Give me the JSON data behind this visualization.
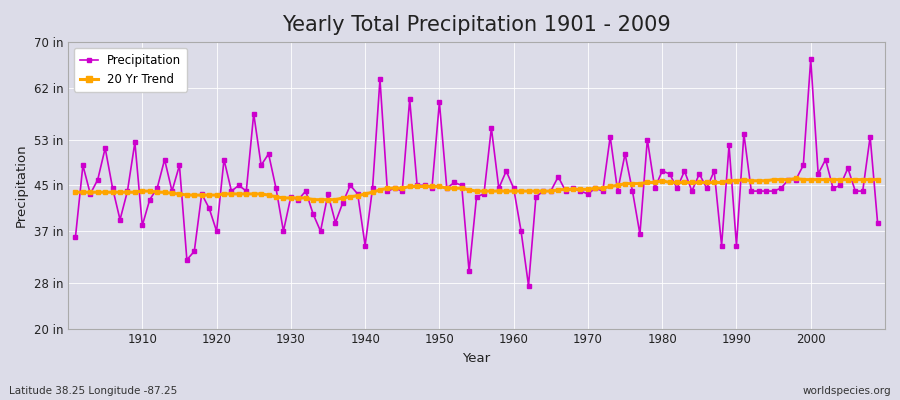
{
  "title": "Yearly Total Precipitation 1901 - 2009",
  "xlabel": "Year",
  "ylabel": "Precipitation",
  "lat_lon_label": "Latitude 38.25 Longitude -87.25",
  "watermark": "worldspecies.org",
  "years": [
    1901,
    1902,
    1903,
    1904,
    1905,
    1906,
    1907,
    1908,
    1909,
    1910,
    1911,
    1912,
    1913,
    1914,
    1915,
    1916,
    1917,
    1918,
    1919,
    1920,
    1921,
    1922,
    1923,
    1924,
    1925,
    1926,
    1927,
    1928,
    1929,
    1930,
    1931,
    1932,
    1933,
    1934,
    1935,
    1936,
    1937,
    1938,
    1939,
    1940,
    1941,
    1942,
    1943,
    1944,
    1945,
    1946,
    1947,
    1948,
    1949,
    1950,
    1951,
    1952,
    1953,
    1954,
    1955,
    1956,
    1957,
    1958,
    1959,
    1960,
    1961,
    1962,
    1963,
    1964,
    1965,
    1966,
    1967,
    1968,
    1969,
    1970,
    1971,
    1972,
    1973,
    1974,
    1975,
    1976,
    1977,
    1978,
    1979,
    1980,
    1981,
    1982,
    1983,
    1984,
    1985,
    1986,
    1987,
    1988,
    1989,
    1990,
    1991,
    1992,
    1993,
    1994,
    1995,
    1996,
    1997,
    1998,
    1999,
    2000,
    2001,
    2002,
    2003,
    2004,
    2005,
    2006,
    2007,
    2008,
    2009
  ],
  "precipitation": [
    36.0,
    48.5,
    43.5,
    46.0,
    51.5,
    44.5,
    39.0,
    44.0,
    52.5,
    38.0,
    42.5,
    44.5,
    49.5,
    44.0,
    48.5,
    32.0,
    33.5,
    43.5,
    41.0,
    37.0,
    49.5,
    44.0,
    45.0,
    44.0,
    57.5,
    48.5,
    50.5,
    44.5,
    37.0,
    43.0,
    42.5,
    44.0,
    40.0,
    37.0,
    43.5,
    38.5,
    42.0,
    45.0,
    43.5,
    34.5,
    44.5,
    63.5,
    44.0,
    44.5,
    44.0,
    60.0,
    45.0,
    45.0,
    44.5,
    59.5,
    44.5,
    45.5,
    45.0,
    30.0,
    43.0,
    43.5,
    55.0,
    44.5,
    47.5,
    44.5,
    37.0,
    27.5,
    43.0,
    44.0,
    44.0,
    46.5,
    44.0,
    44.5,
    44.0,
    43.5,
    44.5,
    44.0,
    53.5,
    44.0,
    50.5,
    44.0,
    36.5,
    53.0,
    44.5,
    47.5,
    47.0,
    44.5,
    47.5,
    44.0,
    47.0,
    44.5,
    47.5,
    34.5,
    52.0,
    34.5,
    54.0,
    44.0,
    44.0,
    44.0,
    44.0,
    44.5,
    46.0,
    46.0,
    48.5,
    67.0,
    47.0,
    49.5,
    44.5,
    45.0,
    48.0,
    44.0,
    44.0,
    53.5,
    38.5
  ],
  "trend": [
    43.8,
    43.8,
    43.8,
    43.8,
    43.8,
    43.8,
    43.8,
    43.8,
    43.8,
    44.0,
    44.0,
    43.8,
    43.8,
    43.6,
    43.5,
    43.3,
    43.3,
    43.3,
    43.3,
    43.3,
    43.5,
    43.5,
    43.5,
    43.5,
    43.5,
    43.5,
    43.3,
    43.0,
    42.8,
    42.8,
    42.8,
    42.8,
    42.5,
    42.5,
    42.5,
    42.5,
    42.8,
    43.0,
    43.2,
    43.5,
    43.8,
    44.2,
    44.5,
    44.5,
    44.5,
    44.8,
    44.8,
    44.8,
    44.8,
    44.8,
    44.5,
    44.5,
    44.5,
    44.2,
    44.0,
    44.0,
    44.0,
    44.0,
    44.0,
    44.0,
    44.0,
    44.0,
    44.0,
    44.0,
    44.0,
    44.2,
    44.3,
    44.3,
    44.3,
    44.3,
    44.5,
    44.5,
    44.8,
    45.0,
    45.3,
    45.3,
    45.3,
    45.5,
    45.5,
    45.8,
    45.5,
    45.5,
    45.5,
    45.5,
    45.5,
    45.5,
    45.5,
    45.5,
    45.8,
    45.8,
    46.0,
    45.8,
    45.8,
    45.8,
    46.0,
    46.0,
    46.0,
    46.2,
    46.0,
    46.0,
    46.0,
    46.0,
    46.0,
    46.0,
    46.0,
    46.0,
    46.0,
    46.0,
    46.0
  ],
  "precip_color": "#cc00cc",
  "trend_color": "#FFA500",
  "bg_color": "#dcdce8",
  "plot_bg_color": "#dcdce8",
  "title_fontsize": 15,
  "ylim": [
    20,
    70
  ],
  "yticks": [
    20,
    28,
    37,
    45,
    53,
    62,
    70
  ],
  "ytick_labels": [
    "20 in",
    "28 in",
    "37 in",
    "45 in",
    "53 in",
    "62 in",
    "70 in"
  ],
  "xlim_min": 1901,
  "xlim_max": 2009,
  "xticks": [
    1910,
    1920,
    1930,
    1940,
    1950,
    1960,
    1970,
    1980,
    1990,
    2000
  ]
}
